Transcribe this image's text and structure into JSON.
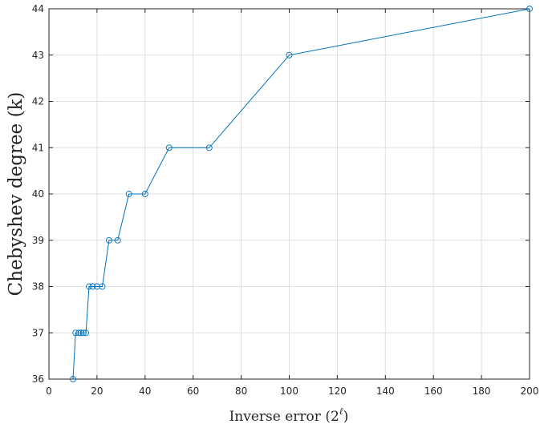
{
  "chart_data": {
    "type": "line",
    "xlabel": "Inverse error (2",
    "xlabel_sup": "ℓ",
    "xlabel_close": ")",
    "ylabel": "Chebyshev degree (k)",
    "xlim": [
      0,
      200
    ],
    "ylim": [
      36,
      44
    ],
    "xticks": [
      "0",
      "20",
      "40",
      "60",
      "80",
      "100",
      "120",
      "140",
      "160",
      "180",
      "200"
    ],
    "yticks": [
      "36",
      "37",
      "38",
      "39",
      "40",
      "41",
      "42",
      "43",
      "44"
    ],
    "grid": true,
    "series": [
      {
        "color": "#0072bd",
        "marker": "circle",
        "x": [
          10,
          11.1,
          12.5,
          13.3,
          14.3,
          15.4,
          16.7,
          18.2,
          20,
          22.2,
          25,
          28.6,
          33.3,
          40,
          50,
          66.7,
          100,
          200
        ],
        "y": [
          36,
          37,
          37,
          37,
          37,
          37,
          38,
          38,
          38,
          38,
          39,
          39,
          40,
          40,
          41,
          41,
          43,
          44
        ]
      }
    ]
  }
}
